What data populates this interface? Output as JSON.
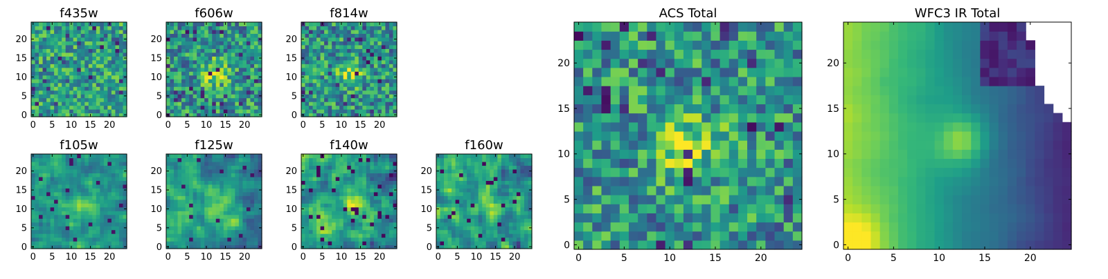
{
  "figure": {
    "colormap": "viridis",
    "colormap_stops": [
      "#440154",
      "#482878",
      "#3e4989",
      "#31688e",
      "#26828e",
      "#1f9e89",
      "#35b779",
      "#6ece58",
      "#b5de2b",
      "#fde725"
    ]
  },
  "chart_data": [
    {
      "type": "heatmap",
      "title": "f435w",
      "grid_size": 25,
      "xticks": [
        "0",
        "5",
        "10",
        "15",
        "20"
      ],
      "yticks": [
        "0",
        "5",
        "10",
        "15",
        "20"
      ],
      "xlim": [
        -0.5,
        24.5
      ],
      "ylim": [
        -0.5,
        24.5
      ],
      "pattern": "noise",
      "seed": 11,
      "notes": "noisy field, mostly green-yellow"
    },
    {
      "type": "heatmap",
      "title": "f606w",
      "grid_size": 25,
      "xticks": [
        "0",
        "5",
        "10",
        "15",
        "20"
      ],
      "yticks": [
        "0",
        "5",
        "10",
        "15",
        "20"
      ],
      "xlim": [
        -0.5,
        24.5
      ],
      "ylim": [
        -0.5,
        24.5
      ],
      "pattern": "noise_center",
      "seed": 23
    },
    {
      "type": "heatmap",
      "title": "f814w",
      "grid_size": 25,
      "xticks": [
        "0",
        "5",
        "10",
        "15",
        "20"
      ],
      "yticks": [
        "0",
        "5",
        "10",
        "15",
        "20"
      ],
      "xlim": [
        -0.5,
        24.5
      ],
      "ylim": [
        -0.5,
        24.5
      ],
      "pattern": "noise_center",
      "seed": 37
    },
    {
      "type": "heatmap",
      "title": "f105w",
      "grid_size": 25,
      "xticks": [
        "0",
        "5",
        "10",
        "15",
        "20"
      ],
      "yticks": [
        "0",
        "5",
        "10",
        "15",
        "20"
      ],
      "xlim": [
        -0.5,
        24.5
      ],
      "ylim": [
        -0.5,
        24.5
      ],
      "pattern": "smooth",
      "seed": 41
    },
    {
      "type": "heatmap",
      "title": "f125w",
      "grid_size": 25,
      "xticks": [
        "0",
        "5",
        "10",
        "15",
        "20"
      ],
      "yticks": [
        "0",
        "5",
        "10",
        "15",
        "20"
      ],
      "xlim": [
        -0.5,
        24.5
      ],
      "ylim": [
        -0.5,
        24.5
      ],
      "pattern": "smooth",
      "seed": 53
    },
    {
      "type": "heatmap",
      "title": "f140w",
      "grid_size": 25,
      "xticks": [
        "0",
        "5",
        "10",
        "15",
        "20"
      ],
      "yticks": [
        "0",
        "5",
        "10",
        "15",
        "20"
      ],
      "xlim": [
        -0.5,
        24.5
      ],
      "ylim": [
        -0.5,
        24.5
      ],
      "pattern": "smooth_dark",
      "seed": 67
    },
    {
      "type": "heatmap",
      "title": "f160w",
      "grid_size": 25,
      "xticks": [
        "0",
        "5",
        "10",
        "15",
        "20"
      ],
      "yticks": [
        "0",
        "5",
        "10",
        "15",
        "20"
      ],
      "xlim": [
        -0.5,
        24.5
      ],
      "ylim": [
        -0.5,
        24.5
      ],
      "pattern": "smooth_dark",
      "seed": 79
    },
    {
      "type": "heatmap",
      "title": "ACS Total",
      "grid_size": 25,
      "xticks": [
        "0",
        "5",
        "10",
        "15",
        "20"
      ],
      "yticks": [
        "0",
        "5",
        "10",
        "15",
        "20"
      ],
      "xlim": [
        -0.5,
        24.5
      ],
      "ylim": [
        -0.5,
        24.5
      ],
      "pattern": "noise_center",
      "seed": 97
    },
    {
      "type": "heatmap",
      "title": "WFC3 IR Total",
      "grid_size": 25,
      "xticks": [
        "0",
        "5",
        "10",
        "15",
        "20"
      ],
      "yticks": [
        "0",
        "5",
        "10",
        "15",
        "20"
      ],
      "xlim": [
        -0.5,
        24.5
      ],
      "ylim": [
        -0.5,
        24.5
      ],
      "pattern": "gradient_masked",
      "seed": 101,
      "masked_region": "upper-right (blank/white)"
    }
  ]
}
